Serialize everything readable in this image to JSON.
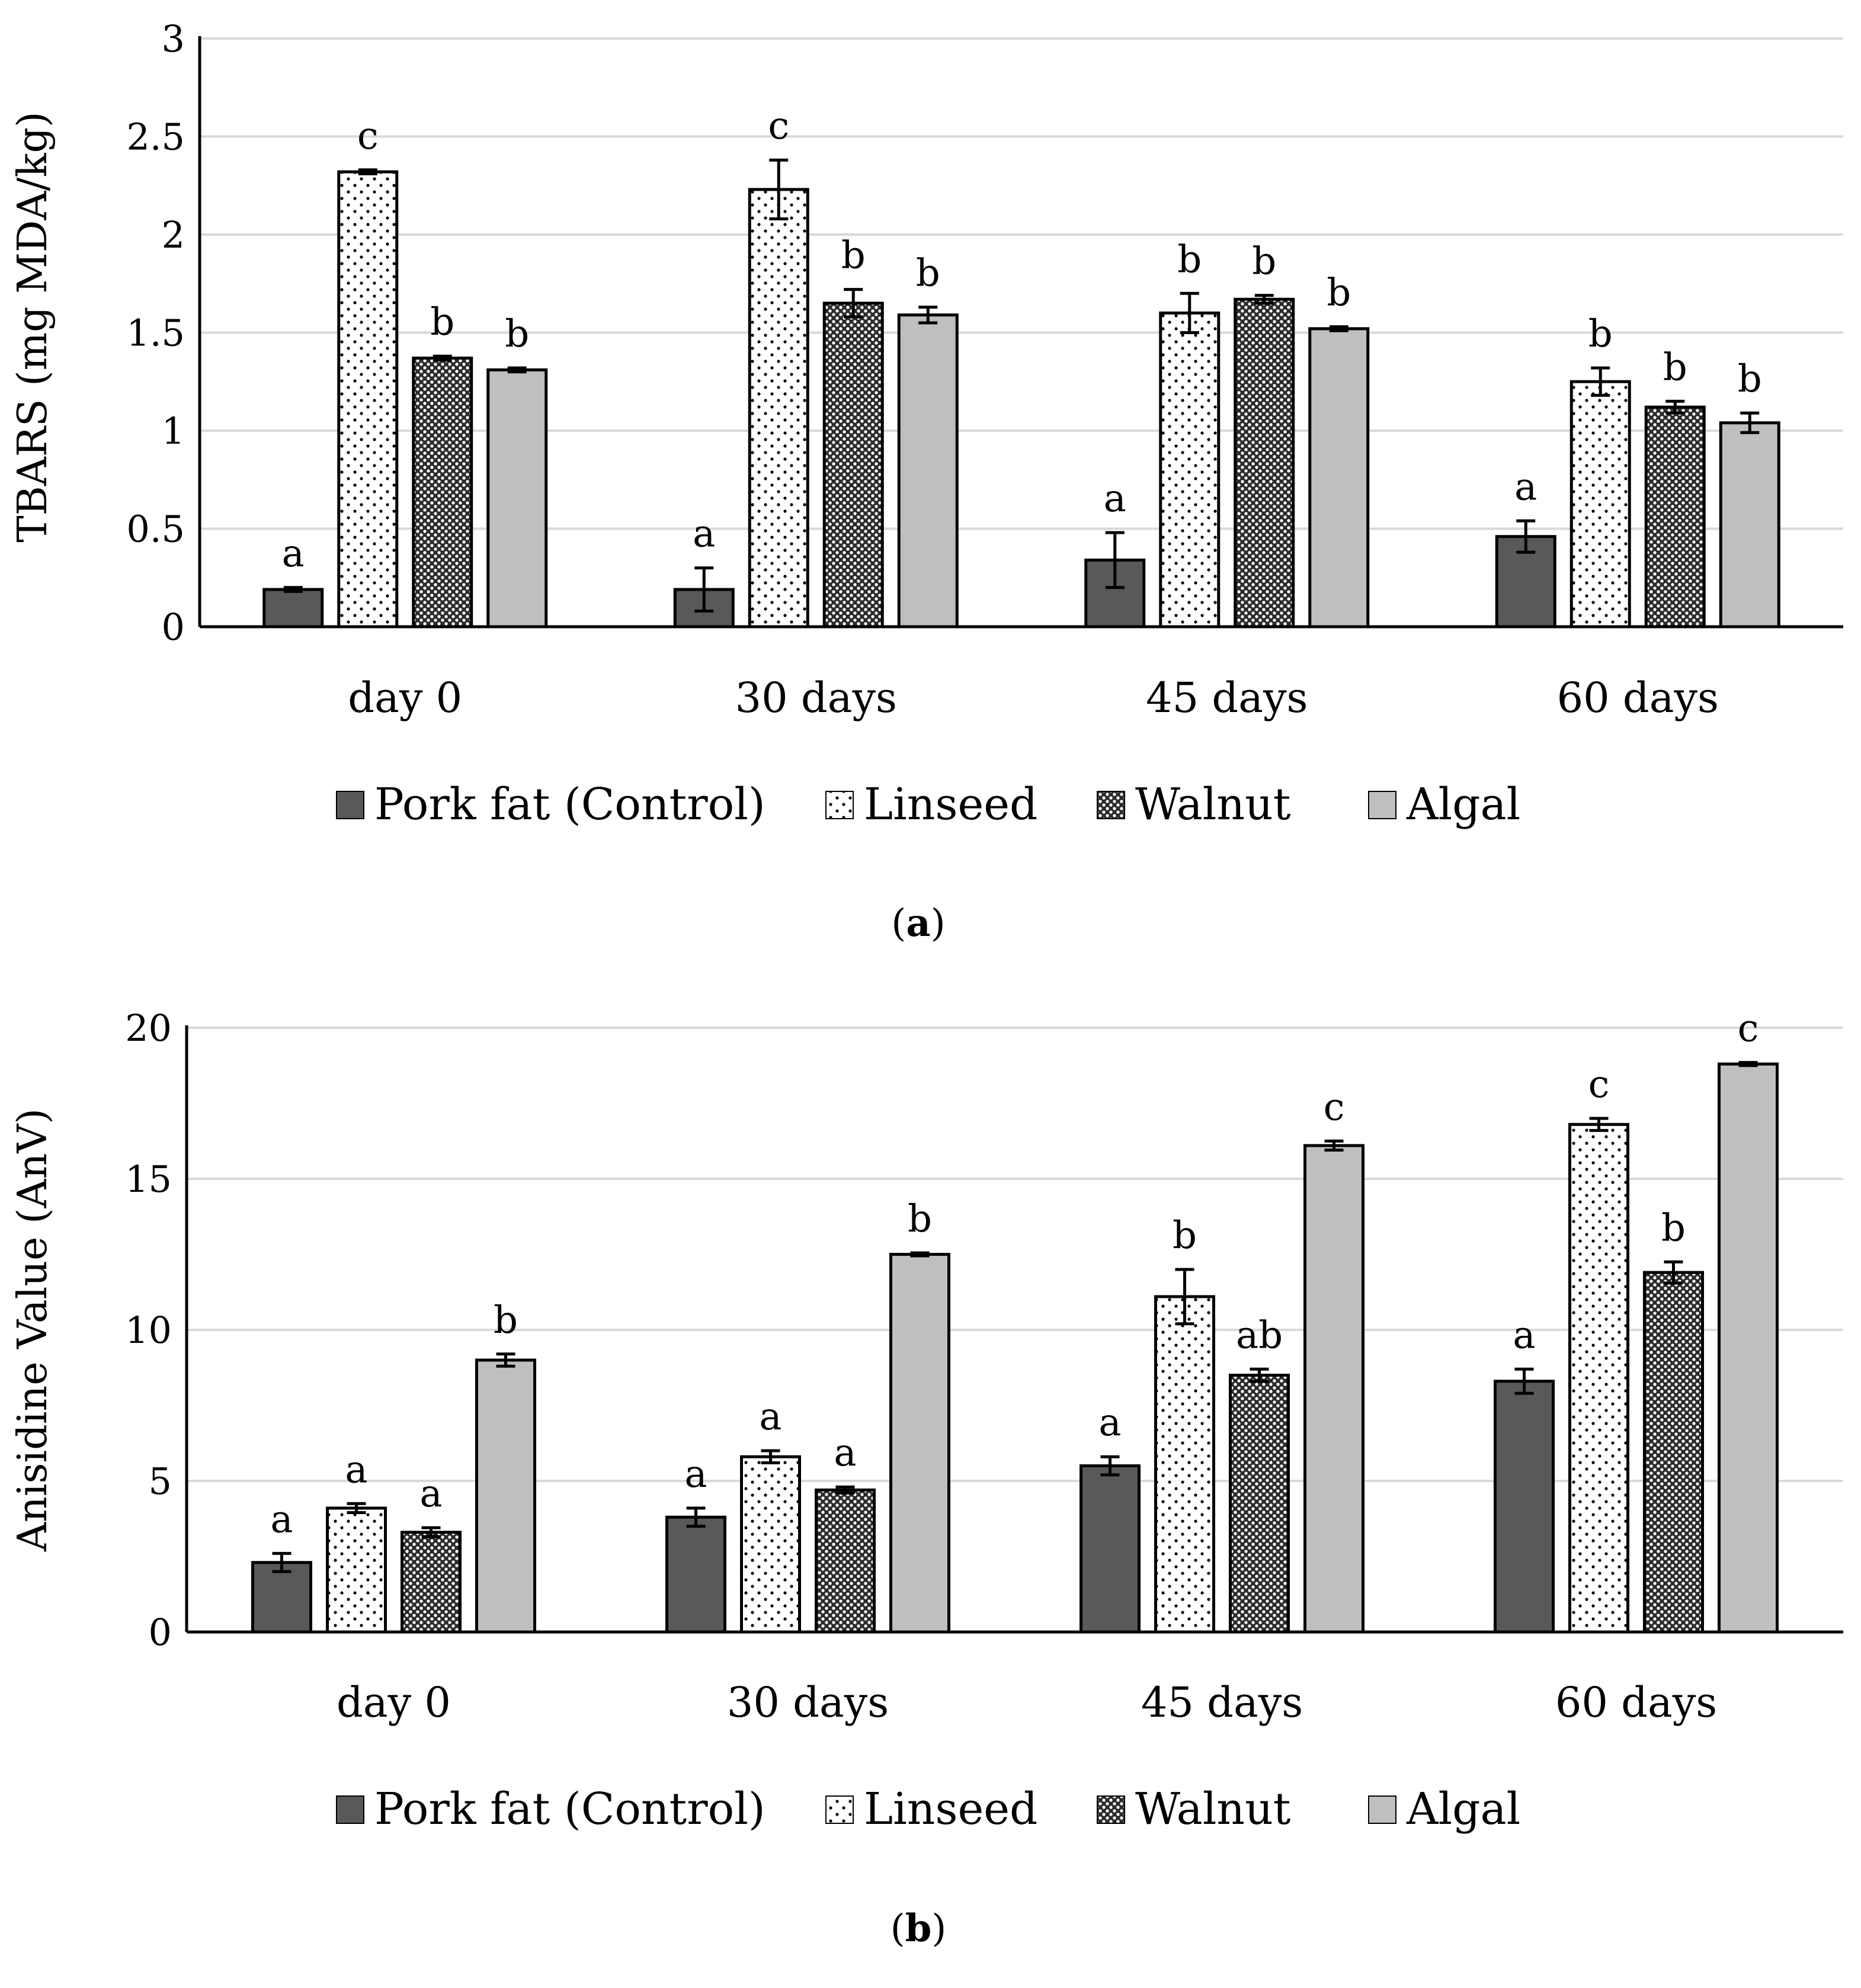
{
  "colors": {
    "control": "#595959",
    "linseed_bg": "#ffffff",
    "walnut_bg": "#8c8c8c",
    "algal": "#bfbfbf",
    "grid": "#d9d9d9",
    "axis": "#000000"
  },
  "legend": [
    {
      "label": "Pork fat (Control)",
      "key": "control"
    },
    {
      "label": "Linseed",
      "key": "linseed"
    },
    {
      "label": "Walnut",
      "key": "walnut"
    },
    {
      "label": "Algal",
      "key": "algal"
    }
  ],
  "chart_data": [
    {
      "type": "bar",
      "panel": "a",
      "caption": {
        "open": "(",
        "letter": "a",
        "close": ")"
      },
      "ylabel": "TBARS (mg MDA/kg)",
      "xlabel": "",
      "ylim": [
        0,
        3
      ],
      "yticks": [
        "0",
        "0.5",
        "1",
        "1.5",
        "2",
        "2.5",
        "3"
      ],
      "ytick_values": [
        0,
        0.5,
        1,
        1.5,
        2,
        2.5,
        3
      ],
      "grid": true,
      "categories": [
        "day 0",
        "30 days",
        "45 days",
        "60 days"
      ],
      "series": [
        {
          "name": "Pork fat (Control)",
          "values": [
            0.19,
            0.19,
            0.34,
            0.46
          ],
          "errors": [
            0.01,
            0.11,
            0.14,
            0.08
          ],
          "letters": [
            "a",
            "a",
            "a",
            "a"
          ]
        },
        {
          "name": "Linseed",
          "values": [
            2.32,
            2.23,
            1.6,
            1.25
          ],
          "errors": [
            0.01,
            0.15,
            0.1,
            0.07
          ],
          "letters": [
            "c",
            "c",
            "b",
            "b"
          ]
        },
        {
          "name": "Walnut",
          "values": [
            1.37,
            1.65,
            1.67,
            1.12
          ],
          "errors": [
            0.01,
            0.07,
            0.02,
            0.03
          ],
          "letters": [
            "b",
            "b",
            "b",
            "b"
          ]
        },
        {
          "name": "Algal",
          "values": [
            1.31,
            1.59,
            1.52,
            1.04
          ],
          "errors": [
            0.01,
            0.04,
            0.01,
            0.05
          ],
          "letters": [
            "b",
            "b",
            "b",
            "b"
          ]
        }
      ]
    },
    {
      "type": "bar",
      "panel": "b",
      "caption": {
        "open": "(",
        "letter": "b",
        "close": ")"
      },
      "ylabel": "Anisidine Value (AnV)",
      "xlabel": "",
      "ylim": [
        0,
        20
      ],
      "yticks": [
        "0",
        "5",
        "10",
        "15",
        "20"
      ],
      "ytick_values": [
        0,
        5,
        10,
        15,
        20
      ],
      "grid": true,
      "categories": [
        "day 0",
        "30 days",
        "45 days",
        "60 days"
      ],
      "series": [
        {
          "name": "Pork fat (Control)",
          "values": [
            2.3,
            3.8,
            5.5,
            8.3
          ],
          "errors": [
            0.3,
            0.3,
            0.3,
            0.4
          ],
          "letters": [
            "a",
            "a",
            "a",
            "a"
          ]
        },
        {
          "name": "Linseed",
          "values": [
            4.1,
            5.8,
            11.1,
            16.8
          ],
          "errors": [
            0.15,
            0.2,
            0.9,
            0.2
          ],
          "letters": [
            "a",
            "a",
            "b",
            "c"
          ]
        },
        {
          "name": "Walnut",
          "values": [
            3.3,
            4.7,
            8.5,
            11.9
          ],
          "errors": [
            0.15,
            0.1,
            0.2,
            0.35
          ],
          "letters": [
            "a",
            "a",
            "ab",
            "b"
          ]
        },
        {
          "name": "Algal",
          "values": [
            9.0,
            12.5,
            16.1,
            18.8
          ],
          "errors": [
            0.2,
            0.05,
            0.15,
            0.05
          ],
          "letters": [
            "b",
            "b",
            "c",
            "c"
          ]
        }
      ]
    }
  ]
}
